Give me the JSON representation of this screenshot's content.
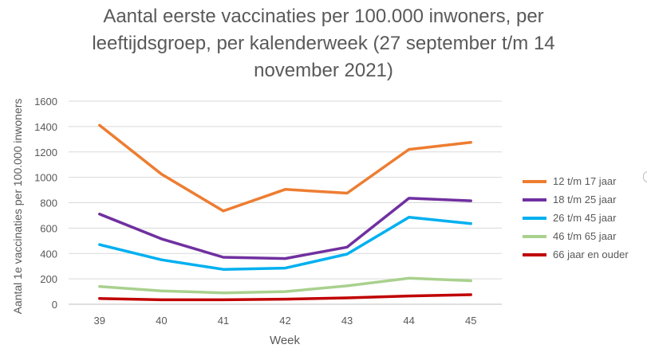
{
  "chart_data": {
    "type": "line",
    "title_lines": [
      "Aantal eerste vaccinaties per 100.000 inwoners, per",
      "leeftijdsgroep, per kalenderweek (27 september t/m 14",
      "november 2021)"
    ],
    "xlabel": "Week",
    "ylabel": "Aantal 1e vaccinaties per 100.000 inwoners",
    "categories": [
      "39",
      "40",
      "41",
      "42",
      "43",
      "44",
      "45"
    ],
    "ylim": [
      0,
      1600
    ],
    "yticks": [
      0,
      200,
      400,
      600,
      800,
      1000,
      1200,
      1400,
      1600
    ],
    "grid": true,
    "legend_position": "right",
    "series": [
      {
        "name": "12 t/m 17 jaar",
        "color": "#ED7D31",
        "values": [
          1410,
          1025,
          735,
          905,
          875,
          1220,
          1275
        ]
      },
      {
        "name": "18 t/m 25 jaar",
        "color": "#7030A0",
        "values": [
          710,
          515,
          370,
          360,
          450,
          835,
          815
        ]
      },
      {
        "name": "26 t/m 45 jaar",
        "color": "#00B0F0",
        "values": [
          470,
          350,
          275,
          285,
          395,
          685,
          635
        ]
      },
      {
        "name": "46 t/m 65 jaar",
        "color": "#A9D18E",
        "values": [
          140,
          105,
          90,
          100,
          145,
          205,
          185
        ]
      },
      {
        "name": "66 jaar en ouder",
        "color": "#C00000",
        "values": [
          45,
          35,
          35,
          40,
          50,
          65,
          75
        ]
      }
    ]
  }
}
